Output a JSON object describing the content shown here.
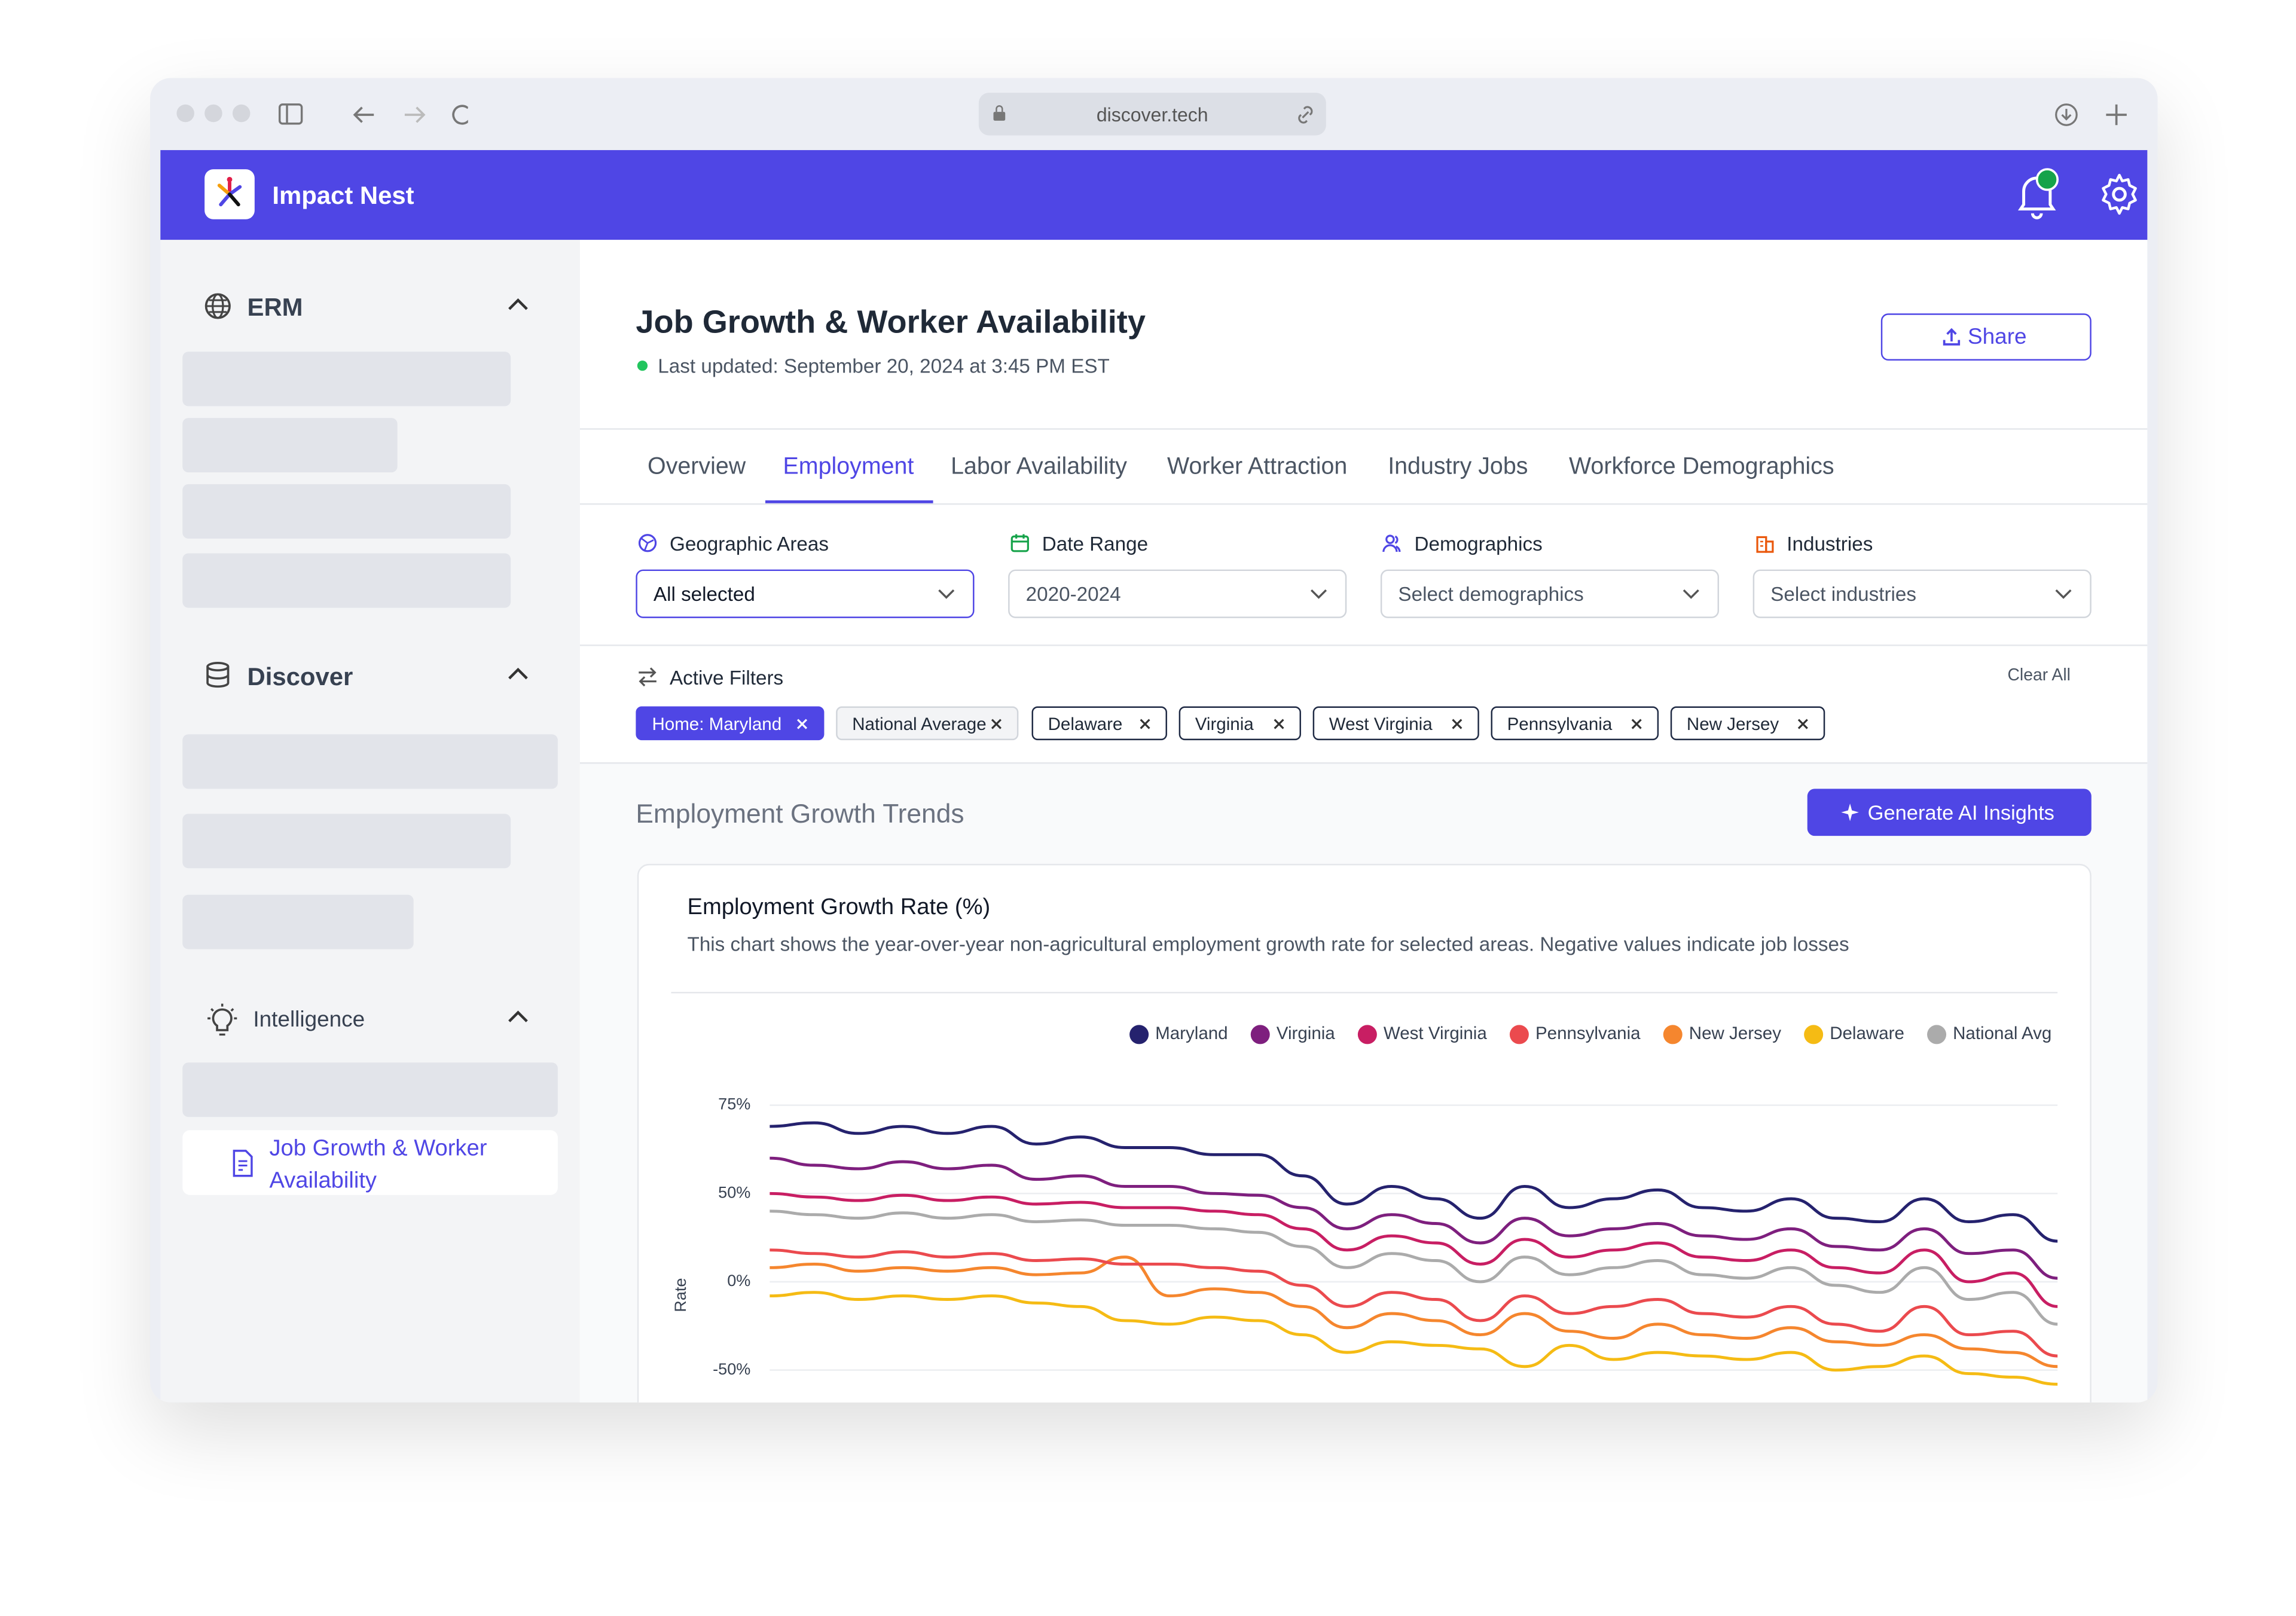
{
  "browser": {
    "url": "discover.tech"
  },
  "header": {
    "app_name": "Impact Nest"
  },
  "sidebar": {
    "sections": [
      {
        "label": "ERM"
      },
      {
        "label": "Discover"
      },
      {
        "label": "Intelligence",
        "items": [
          "Job Growth & Worker Availability"
        ]
      }
    ]
  },
  "page": {
    "title": "Job Growth & Worker Availability",
    "last_updated": "Last updated: September 20, 2024 at 3:45 PM EST",
    "share": "Share"
  },
  "tabs": [
    "Overview",
    "Employment",
    "Labor Availability",
    "Worker Attraction",
    "Industry Jobs",
    "Workforce Demographics"
  ],
  "filters": [
    {
      "label": "Geographic Areas",
      "value": "All selected"
    },
    {
      "label": "Date Range",
      "value": "2020-2024"
    },
    {
      "label": "Demographics",
      "value": "Select demographics"
    },
    {
      "label": "Industries",
      "value": "Select industries"
    }
  ],
  "active_filters": {
    "label": "Active Filters",
    "clear": "Clear All",
    "chips": [
      "Home: Maryland",
      "National Average",
      "Delaware",
      "Virginia",
      "West Virginia",
      "Pennsylvania",
      "New Jersey"
    ]
  },
  "section": {
    "title": "Employment Growth Trends",
    "button": "Generate AI Insights"
  },
  "chart_data": {
    "type": "line",
    "title": "Employment Growth Rate (%)",
    "subtitle": "This chart shows the year-over-year non-agricultural employment growth rate for selected areas. Negative values indicate job losses",
    "y_label": "Rate",
    "categories": [
      null,
      null,
      null,
      null,
      null,
      null,
      null,
      null,
      null,
      null,
      null,
      null,
      null,
      null,
      null,
      null,
      null,
      null,
      null,
      null,
      null,
      null,
      null,
      null,
      null,
      null,
      null,
      null,
      null,
      null
    ],
    "series": [
      {
        "name": "Maryland",
        "color": "#25226e",
        "values": [
          69,
          70,
          67,
          69,
          67,
          69,
          64,
          66,
          63,
          63,
          61,
          61,
          55,
          44,
          52,
          47,
          36,
          52,
          42,
          47,
          51,
          42,
          40,
          47,
          36,
          34,
          47,
          34,
          38,
          23
        ]
      },
      {
        "name": "Virginia",
        "color": "#7e1f7e",
        "values": [
          60,
          58,
          57,
          59,
          57,
          58,
          54,
          55,
          52,
          52,
          50,
          49,
          42,
          30,
          38,
          33,
          22,
          36,
          26,
          30,
          33,
          26,
          24,
          30,
          20,
          18,
          30,
          16,
          18,
          2
        ]
      },
      {
        "name": "West Virginia",
        "color": "#c81e63",
        "values": [
          50,
          48,
          46,
          49,
          46,
          48,
          44,
          45,
          42,
          42,
          40,
          38,
          30,
          18,
          26,
          22,
          10,
          24,
          14,
          18,
          22,
          14,
          12,
          18,
          8,
          5,
          18,
          0,
          5,
          -14
        ]
      },
      {
        "name": "Pennsylvania",
        "color": "#eb4a4e",
        "values": [
          18,
          16,
          14,
          17,
          14,
          16,
          12,
          13,
          10,
          10,
          8,
          6,
          -2,
          -14,
          -6,
          -10,
          -22,
          -8,
          -18,
          -14,
          -10,
          -18,
          -20,
          -14,
          -24,
          -28,
          -14,
          -30,
          -28,
          -42
        ]
      },
      {
        "name": "New Jersey",
        "color": "#f5862e",
        "values": [
          8,
          10,
          6,
          8,
          6,
          8,
          4,
          5,
          14,
          -8,
          -4,
          -6,
          -14,
          -26,
          -18,
          -22,
          -30,
          -18,
          -28,
          -32,
          -24,
          -30,
          -32,
          -26,
          -34,
          -36,
          -30,
          -38,
          -40,
          -48
        ]
      },
      {
        "name": "Delaware",
        "color": "#f5bb14",
        "values": [
          -8,
          -6,
          -10,
          -8,
          -10,
          -8,
          -12,
          -14,
          -22,
          -24,
          -20,
          -22,
          -30,
          -40,
          -34,
          -36,
          -38,
          -48,
          -36,
          -44,
          -40,
          -42,
          -44,
          -40,
          -50,
          -48,
          -42,
          -52,
          -54,
          -58
        ]
      },
      {
        "name": "National Avg",
        "color": "#ababab",
        "values": [
          40,
          38,
          36,
          39,
          36,
          38,
          34,
          35,
          32,
          32,
          30,
          28,
          20,
          8,
          16,
          12,
          0,
          14,
          4,
          8,
          12,
          4,
          2,
          8,
          -2,
          -6,
          8,
          -10,
          -6,
          -24
        ]
      }
    ],
    "ylim": [
      -60,
      75
    ],
    "yticks": [
      {
        "value": 75,
        "label": "75%"
      },
      {
        "value": 50,
        "label": "50%"
      },
      {
        "value": 0,
        "label": "0%"
      },
      {
        "value": -50,
        "label": "-50%"
      }
    ],
    "grid": true,
    "legend": "top-right"
  }
}
